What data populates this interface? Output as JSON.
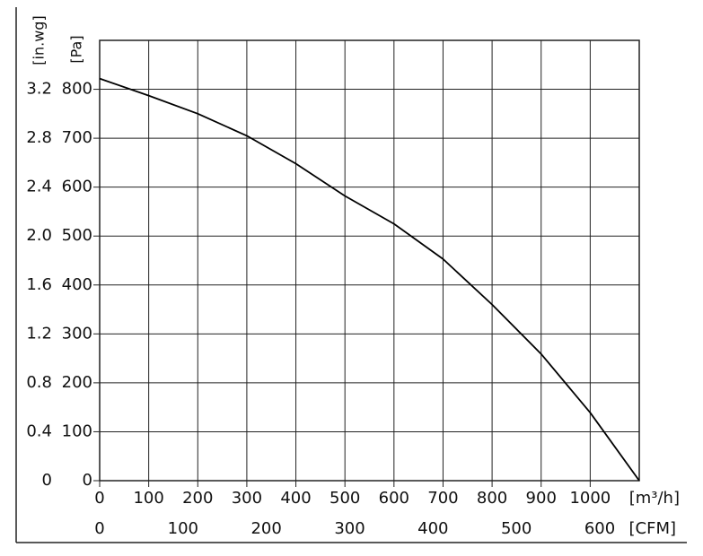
{
  "chart_data": {
    "type": "line",
    "x": [
      0,
      100,
      200,
      300,
      400,
      500,
      600,
      700,
      800,
      900,
      1000,
      1100
    ],
    "series": [
      {
        "color": "#000000",
        "values": [
          822,
          787,
          750,
          705,
          648,
          582,
          525,
          453,
          360,
          259,
          139,
          0
        ]
      }
    ],
    "xlim": [
      0,
      1100
    ],
    "xticks": [
      0,
      100,
      200,
      300,
      400,
      500,
      600,
      700,
      800,
      900,
      1000
    ],
    "x_unit": "[m³/h]",
    "x2lim": [
      0,
      647.4
    ],
    "x2ticks": [
      0,
      100,
      200,
      300,
      400,
      500,
      600
    ],
    "x2_unit": "[CFM]",
    "ylim": [
      0,
      900
    ],
    "yticks": [
      0,
      100,
      200,
      300,
      400,
      500,
      600,
      700,
      800
    ],
    "y_unit": "[Pa]",
    "y2lim": [
      0,
      3.6
    ],
    "y2ticks": [
      0,
      0.4,
      0.8,
      1.2,
      1.6,
      {
        "value": 2,
        "label": "2.0"
      },
      2.4,
      2.8,
      3.2
    ],
    "y2_unit": "[in.wg]",
    "grid": true
  }
}
